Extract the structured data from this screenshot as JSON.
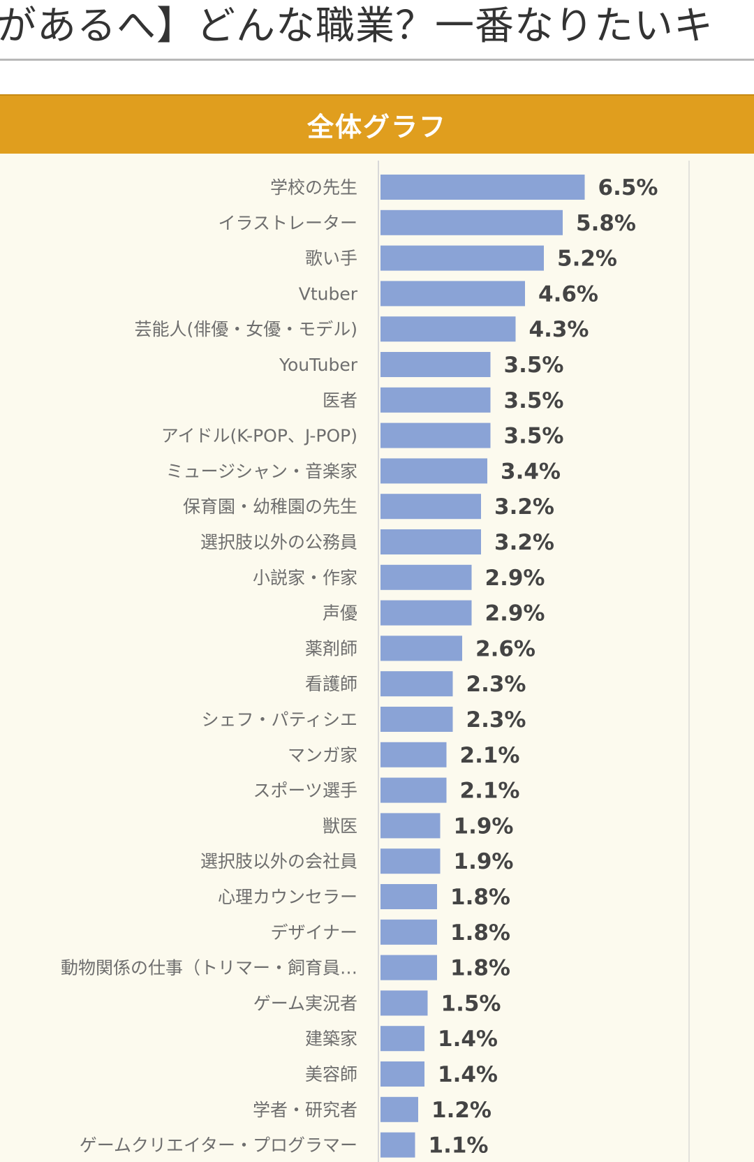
{
  "page": {
    "title": "があるへ】どんな職業？一番なりたいキ"
  },
  "panel": {
    "title": "全体グラフ"
  },
  "colors": {
    "header_bar": "#e09e1e",
    "panel_bg": "#fcfaee",
    "bar": "#8aa3d6"
  },
  "chart_data": {
    "type": "bar",
    "orientation": "horizontal",
    "title": "全体グラフ",
    "unit": "%",
    "categories": [
      "学校の先生",
      "イラストレーター",
      "歌い手",
      "Vtuber",
      "芸能人(俳優・女優・モデル)",
      "YouTuber",
      "医者",
      "アイドル(K-POP、J-POP)",
      "ミュージシャン・音楽家",
      "保育園・幼稚園の先生",
      "選択肢以外の公務員",
      "小説家・作家",
      "声優",
      "薬剤師",
      "看護師",
      "シェフ・パティシエ",
      "マンガ家",
      "スポーツ選手",
      "獣医",
      "選択肢以外の会社員",
      "心理カウンセラー",
      "デザイナー",
      "動物関係の仕事（トリマー・飼育員…",
      "ゲーム実況者",
      "建築家",
      "美容師",
      "学者・研究者",
      "ゲームクリエイター・プログラマー"
    ],
    "values": [
      6.5,
      5.8,
      5.2,
      4.6,
      4.3,
      3.5,
      3.5,
      3.5,
      3.4,
      3.2,
      3.2,
      2.9,
      2.9,
      2.6,
      2.3,
      2.3,
      2.1,
      2.1,
      1.9,
      1.9,
      1.8,
      1.8,
      1.8,
      1.5,
      1.4,
      1.4,
      1.2,
      1.1
    ],
    "value_labels": [
      "6.5%",
      "5.8%",
      "5.2%",
      "4.6%",
      "4.3%",
      "3.5%",
      "3.5%",
      "3.5%",
      "3.4%",
      "3.2%",
      "3.2%",
      "2.9%",
      "2.9%",
      "2.6%",
      "2.3%",
      "2.3%",
      "2.1%",
      "2.1%",
      "1.9%",
      "1.9%",
      "1.8%",
      "1.8%",
      "1.8%",
      "1.5%",
      "1.4%",
      "1.4%",
      "1.2%",
      "1.1%"
    ],
    "xlim": [
      0,
      10
    ],
    "grid": false,
    "legend": "none"
  }
}
